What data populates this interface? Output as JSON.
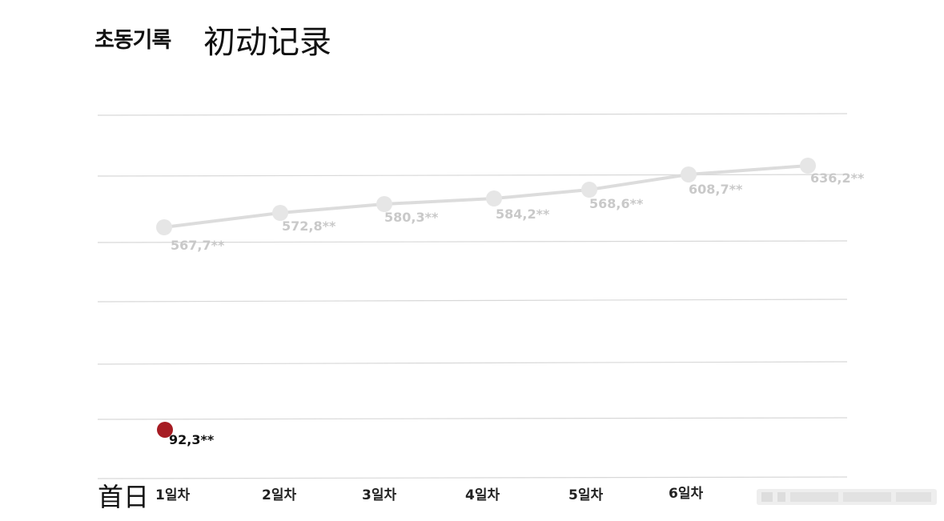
{
  "title": {
    "korean": "초동기록",
    "chinese": "初动记录"
  },
  "first_day_label": "首日",
  "colors": {
    "line": "#dcdcdc",
    "point": "#e6e6e6",
    "highlight": "#a61c23",
    "grid": "#d8d8d8"
  },
  "chart_data": {
    "type": "line",
    "categories": [
      "1일차",
      "2일차",
      "3일차",
      "4일차",
      "5일차",
      "6일차",
      ""
    ],
    "series": [
      {
        "values": [
          567.7,
          572.8,
          580.3,
          584.2,
          568.6,
          608.7,
          636.2
        ],
        "labels": [
          "567,7**",
          "572,8**",
          "580,3**",
          "584,2**",
          "568,6**",
          "608,7**",
          "636,2**"
        ],
        "color": "#dcdcdc"
      },
      {
        "values": [
          92.3,
          null,
          null,
          null,
          null,
          null,
          null
        ],
        "labels": [
          "92,3**",
          "",
          "",
          "",
          "",
          "",
          ""
        ],
        "color": "#a61c23"
      }
    ],
    "grid": true,
    "legend": "none"
  }
}
